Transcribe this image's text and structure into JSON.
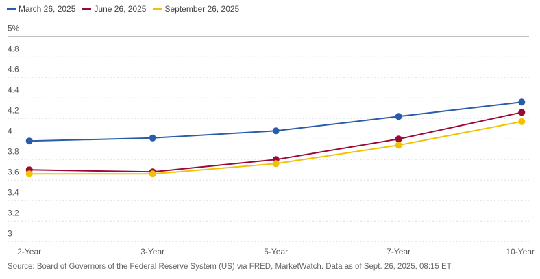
{
  "chart_data": {
    "type": "line",
    "categories": [
      "2-Year",
      "3-Year",
      "5-Year",
      "7-Year",
      "10-Year"
    ],
    "series": [
      {
        "name": "March 26, 2025",
        "color": "#2a5caa",
        "values": [
          3.98,
          4.01,
          4.08,
          4.22,
          4.36
        ]
      },
      {
        "name": "June 26, 2025",
        "color": "#9b0a37",
        "values": [
          3.7,
          3.68,
          3.8,
          4.0,
          4.26
        ]
      },
      {
        "name": "September 26, 2025",
        "color": "#f2c200",
        "values": [
          3.66,
          3.66,
          3.76,
          3.94,
          4.17
        ]
      }
    ],
    "ylim": [
      3,
      5
    ],
    "yticks": [
      "3",
      "3.2",
      "3.4",
      "3.6",
      "3.8",
      "4",
      "4.2",
      "4.4",
      "4.6",
      "4.8",
      "5%"
    ],
    "grid": true,
    "legend": "top-left",
    "source": "Source: Board of Governors of the Federal Reserve System (US) via FRED, MarketWatch. Data as of Sept. 26, 2025, 08:15 ET"
  }
}
